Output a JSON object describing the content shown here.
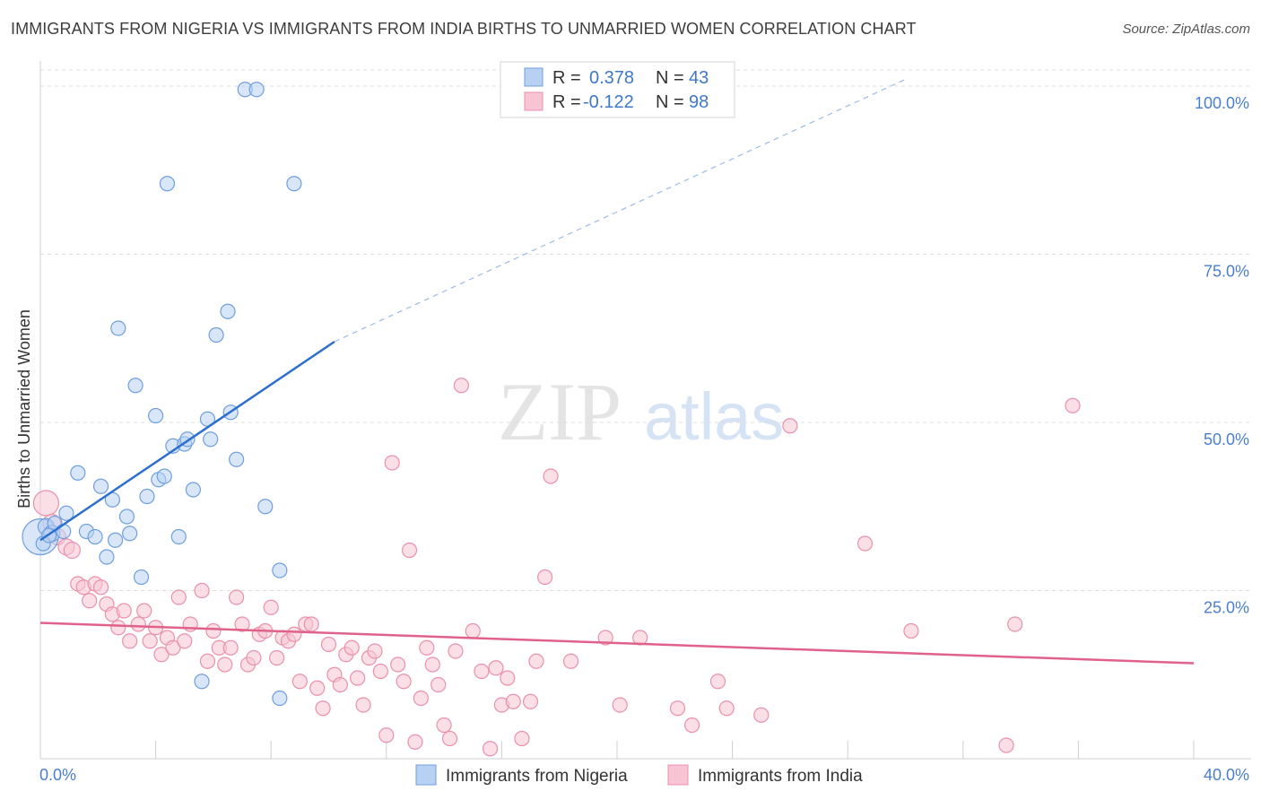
{
  "title": "IMMIGRANTS FROM NIGERIA VS IMMIGRANTS FROM INDIA BIRTHS TO UNMARRIED WOMEN CORRELATION CHART",
  "source": "Source: ZipAtlas.com",
  "watermark": {
    "zip": "ZIP",
    "atlas": "atlas"
  },
  "colors": {
    "nigeria_fill": "#b8d1f2",
    "nigeria_stroke": "#6f9fdf",
    "nigeria_line": "#2c6fce",
    "india_fill": "#f7c4d3",
    "india_stroke": "#ea90ac",
    "india_line": "#e0628b",
    "tick": "#4a7fcf",
    "grid": "#dddddd"
  },
  "legend": {
    "nigeria": {
      "r_label": "R =",
      "r_value": "0.378",
      "n_label": "N =",
      "n_value": "43"
    },
    "india": {
      "r_label": "R =",
      "r_value": "-0.122",
      "n_label": "N =",
      "n_value": "98"
    }
  },
  "chart_data": {
    "type": "scatter",
    "title": "IMMIGRANTS FROM NIGERIA VS IMMIGRANTS FROM INDIA BIRTHS TO UNMARRIED WOMEN CORRELATION CHART",
    "xlabel": "",
    "ylabel": "Births to Unmarried Women",
    "xlim": [
      0,
      40
    ],
    "ylim": [
      0,
      100
    ],
    "x_tick_labels": [
      {
        "value": 0,
        "label": "0.0%"
      },
      {
        "value": 40,
        "label": "40.0%"
      }
    ],
    "y_tick_labels": [
      {
        "value": 25,
        "label": "25.0%"
      },
      {
        "value": 50,
        "label": "50.0%"
      },
      {
        "value": 75,
        "label": "75.0%"
      },
      {
        "value": 100,
        "label": "100.0%"
      }
    ],
    "grid": "horizontal dashed",
    "legend_position": "top-center",
    "series": [
      {
        "name": "Immigrants from Nigeria",
        "r": 0.378,
        "n": 43,
        "trend": {
          "x0": 0,
          "y0": 32.5,
          "x1": 10.2,
          "y1": 62.0,
          "dashed_to_x": 30,
          "dashed_to_y": 101
        },
        "points": [
          [
            0.0,
            33.0,
            20
          ],
          [
            0.2,
            34.5,
            9
          ],
          [
            0.4,
            33.5,
            9
          ],
          [
            0.5,
            35.0,
            8
          ],
          [
            0.9,
            36.5,
            8
          ],
          [
            0.8,
            33.8,
            8
          ],
          [
            1.3,
            42.5,
            8
          ],
          [
            1.6,
            33.8,
            8
          ],
          [
            1.9,
            33.0,
            8
          ],
          [
            2.1,
            40.5,
            8
          ],
          [
            2.5,
            38.5,
            8
          ],
          [
            2.6,
            32.5,
            8
          ],
          [
            2.3,
            30.0,
            8
          ],
          [
            3.0,
            36.0,
            8
          ],
          [
            3.1,
            33.5,
            8
          ],
          [
            2.7,
            64.0,
            8
          ],
          [
            3.3,
            55.5,
            8
          ],
          [
            3.5,
            27.0,
            8
          ],
          [
            3.7,
            39.0,
            8
          ],
          [
            4.0,
            51.0,
            8
          ],
          [
            4.1,
            41.5,
            8
          ],
          [
            4.3,
            42.0,
            8
          ],
          [
            4.4,
            85.5,
            8
          ],
          [
            4.6,
            46.5,
            8
          ],
          [
            4.8,
            33.0,
            8
          ],
          [
            5.0,
            46.8,
            8
          ],
          [
            5.1,
            47.5,
            8
          ],
          [
            5.3,
            40.0,
            8
          ],
          [
            5.6,
            11.5,
            8
          ],
          [
            5.8,
            50.5,
            8
          ],
          [
            5.9,
            47.5,
            8
          ],
          [
            6.1,
            63.0,
            8
          ],
          [
            6.5,
            66.5,
            8
          ],
          [
            6.6,
            51.5,
            8
          ],
          [
            6.8,
            44.5,
            8
          ],
          [
            7.1,
            99.5,
            8
          ],
          [
            7.5,
            99.5,
            8
          ],
          [
            7.8,
            37.5,
            8
          ],
          [
            8.3,
            28.0,
            8
          ],
          [
            8.8,
            85.5,
            8
          ],
          [
            8.3,
            9.0,
            8
          ],
          [
            0.1,
            32.0,
            8
          ],
          [
            0.3,
            33.2,
            8
          ]
        ]
      },
      {
        "name": "Immigrants from India",
        "r": -0.122,
        "n": 98,
        "trend": {
          "x0": 0,
          "y0": 20.2,
          "x1": 40,
          "y1": 14.2
        },
        "points": [
          [
            0.2,
            38.0,
            14
          ],
          [
            0.4,
            35.0,
            10
          ],
          [
            0.6,
            33.0,
            9
          ],
          [
            0.9,
            31.5,
            9
          ],
          [
            1.1,
            31.0,
            9
          ],
          [
            1.3,
            26.0,
            8
          ],
          [
            1.5,
            25.5,
            8
          ],
          [
            1.7,
            23.5,
            8
          ],
          [
            1.9,
            26.0,
            8
          ],
          [
            2.1,
            25.5,
            8
          ],
          [
            2.3,
            23.0,
            8
          ],
          [
            2.5,
            21.5,
            8
          ],
          [
            2.7,
            19.5,
            8
          ],
          [
            2.9,
            22.0,
            8
          ],
          [
            3.1,
            17.5,
            8
          ],
          [
            3.4,
            20.0,
            8
          ],
          [
            3.6,
            22.0,
            8
          ],
          [
            3.8,
            17.5,
            8
          ],
          [
            4.0,
            19.5,
            8
          ],
          [
            4.2,
            15.5,
            8
          ],
          [
            4.4,
            18.0,
            8
          ],
          [
            4.6,
            16.5,
            8
          ],
          [
            4.8,
            24.0,
            8
          ],
          [
            5.0,
            17.5,
            8
          ],
          [
            5.2,
            20.0,
            8
          ],
          [
            5.6,
            25.0,
            8
          ],
          [
            5.8,
            14.5,
            8
          ],
          [
            6.0,
            19.0,
            8
          ],
          [
            6.2,
            16.5,
            8
          ],
          [
            6.4,
            14.0,
            8
          ],
          [
            6.6,
            16.5,
            8
          ],
          [
            6.8,
            24.0,
            8
          ],
          [
            7.0,
            20.0,
            8
          ],
          [
            7.2,
            14.0,
            8
          ],
          [
            7.4,
            15.0,
            8
          ],
          [
            7.6,
            18.5,
            8
          ],
          [
            7.8,
            19.0,
            8
          ],
          [
            8.0,
            22.5,
            8
          ],
          [
            8.2,
            15.0,
            8
          ],
          [
            8.4,
            18.0,
            8
          ],
          [
            8.6,
            17.5,
            8
          ],
          [
            8.8,
            18.5,
            8
          ],
          [
            9.0,
            11.5,
            8
          ],
          [
            9.2,
            20.0,
            8
          ],
          [
            9.4,
            20.0,
            8
          ],
          [
            9.6,
            10.5,
            8
          ],
          [
            9.8,
            7.5,
            8
          ],
          [
            10.0,
            17.0,
            8
          ],
          [
            10.2,
            12.5,
            8
          ],
          [
            10.4,
            11.0,
            8
          ],
          [
            10.6,
            15.5,
            8
          ],
          [
            10.8,
            16.5,
            8
          ],
          [
            11.0,
            12.0,
            8
          ],
          [
            11.2,
            8.0,
            8
          ],
          [
            11.4,
            15.0,
            8
          ],
          [
            11.6,
            16.0,
            8
          ],
          [
            11.8,
            13.0,
            8
          ],
          [
            12.0,
            3.5,
            8
          ],
          [
            12.2,
            44.0,
            8
          ],
          [
            12.4,
            14.0,
            8
          ],
          [
            12.6,
            11.5,
            8
          ],
          [
            12.8,
            31.0,
            8
          ],
          [
            13.0,
            2.5,
            8
          ],
          [
            13.2,
            9.0,
            8
          ],
          [
            13.4,
            16.5,
            8
          ],
          [
            13.6,
            14.0,
            8
          ],
          [
            13.8,
            11.0,
            8
          ],
          [
            14.0,
            5.0,
            8
          ],
          [
            14.2,
            3.0,
            8
          ],
          [
            14.4,
            16.0,
            8
          ],
          [
            14.6,
            55.5,
            8
          ],
          [
            15.0,
            19.0,
            8
          ],
          [
            15.3,
            13.0,
            8
          ],
          [
            15.6,
            1.5,
            8
          ],
          [
            15.8,
            13.5,
            8
          ],
          [
            16.0,
            8.0,
            8
          ],
          [
            16.2,
            12.0,
            8
          ],
          [
            16.4,
            8.5,
            8
          ],
          [
            16.7,
            3.0,
            8
          ],
          [
            17.0,
            8.5,
            8
          ],
          [
            17.2,
            14.5,
            8
          ],
          [
            17.5,
            27.0,
            8
          ],
          [
            17.7,
            42.0,
            8
          ],
          [
            18.4,
            14.5,
            8
          ],
          [
            19.6,
            18.0,
            8
          ],
          [
            20.1,
            8.0,
            8
          ],
          [
            20.8,
            18.0,
            8
          ],
          [
            22.1,
            7.5,
            8
          ],
          [
            22.6,
            5.0,
            8
          ],
          [
            23.5,
            11.5,
            8
          ],
          [
            23.8,
            7.5,
            8
          ],
          [
            25.0,
            6.5,
            8
          ],
          [
            26.0,
            49.5,
            8
          ],
          [
            28.6,
            32.0,
            8
          ],
          [
            30.2,
            19.0,
            8
          ],
          [
            33.5,
            2.0,
            8
          ],
          [
            33.8,
            20.0,
            8
          ],
          [
            35.8,
            52.5,
            8
          ]
        ]
      }
    ]
  },
  "bottom_legend": [
    {
      "label": "Immigrants from Nigeria"
    },
    {
      "label": "Immigrants from India"
    }
  ]
}
